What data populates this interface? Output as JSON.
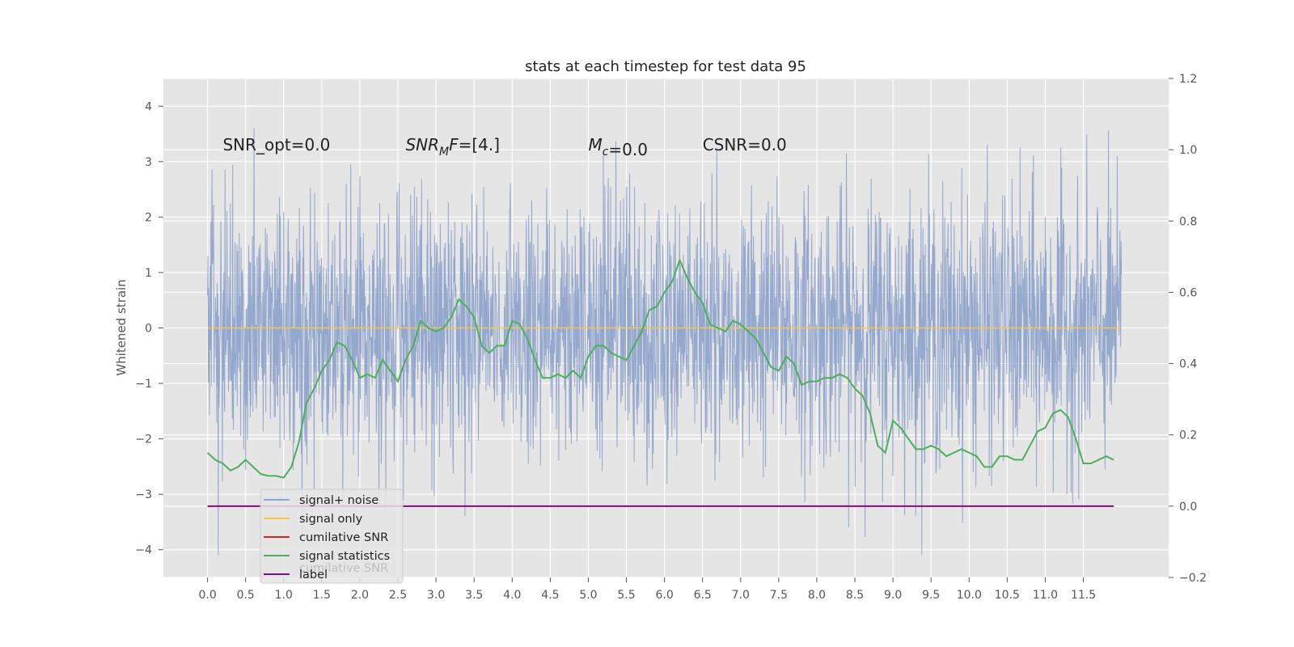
{
  "chart_data": {
    "type": "line",
    "title": "stats at each timestep for test data 95",
    "ylabel": "Whitened strain",
    "xlim": [
      -0.58,
      12.62
    ],
    "ylim_left": [
      -4.5,
      4.5
    ],
    "ylim_right": [
      -0.2,
      1.2
    ],
    "x_ticks": [
      "0.0",
      "0.5",
      "1.0",
      "1.5",
      "2.0",
      "2.5",
      "3.0",
      "3.5",
      "4.0",
      "4.5",
      "5.0",
      "5.5",
      "6.0",
      "6.5",
      "7.0",
      "7.5",
      "8.0",
      "8.5",
      "9.0",
      "9.5",
      "10.0",
      "10.5",
      "11.0",
      "11.5"
    ],
    "y_ticks_left": [
      "4",
      "3",
      "2",
      "1",
      "0",
      "−1",
      "−2",
      "−3",
      "−4"
    ],
    "y_ticks_right": [
      "1.2",
      "1.0",
      "0.8",
      "0.6",
      "0.4",
      "0.2",
      "0.0",
      "−0.2"
    ],
    "grid": true,
    "legend_placement": "lower-left",
    "noise_x_range": [
      0.0,
      12.0
    ],
    "signal_only_value": 0.0,
    "cumulative_snr_value": 0.0,
    "label_value": 0.0,
    "signal_statistics": {
      "x": [
        0.0,
        0.1,
        0.2,
        0.3,
        0.4,
        0.5,
        0.6,
        0.7,
        0.8,
        0.9,
        1.0,
        1.1,
        1.2,
        1.3,
        1.4,
        1.5,
        1.6,
        1.7,
        1.8,
        1.9,
        2.0,
        2.1,
        2.2,
        2.3,
        2.4,
        2.5,
        2.6,
        2.7,
        2.8,
        2.9,
        3.0,
        3.1,
        3.2,
        3.3,
        3.4,
        3.5,
        3.6,
        3.7,
        3.8,
        3.9,
        4.0,
        4.1,
        4.2,
        4.3,
        4.4,
        4.5,
        4.6,
        4.7,
        4.8,
        4.9,
        5.0,
        5.1,
        5.2,
        5.3,
        5.4,
        5.5,
        5.6,
        5.7,
        5.8,
        5.9,
        6.0,
        6.1,
        6.2,
        6.3,
        6.4,
        6.5,
        6.6,
        6.7,
        6.8,
        6.9,
        7.0,
        7.1,
        7.2,
        7.3,
        7.4,
        7.5,
        7.6,
        7.7,
        7.8,
        7.9,
        8.0,
        8.1,
        8.2,
        8.3,
        8.4,
        8.5,
        8.6,
        8.7,
        8.8,
        8.9,
        9.0,
        9.1,
        9.2,
        9.3,
        9.4,
        9.5,
        9.6,
        9.7,
        9.8,
        9.9,
        10.0,
        10.1,
        10.2,
        10.3,
        10.4,
        10.5,
        10.6,
        10.7,
        10.8,
        10.9,
        11.0,
        11.1,
        11.2,
        11.3,
        11.4,
        11.5,
        11.6,
        11.7,
        11.8,
        11.9
      ],
      "y": [
        0.15,
        0.13,
        0.12,
        0.1,
        0.11,
        0.13,
        0.11,
        0.09,
        0.085,
        0.085,
        0.08,
        0.11,
        0.18,
        0.29,
        0.33,
        0.38,
        0.41,
        0.46,
        0.45,
        0.41,
        0.36,
        0.37,
        0.36,
        0.41,
        0.38,
        0.35,
        0.41,
        0.45,
        0.52,
        0.5,
        0.49,
        0.5,
        0.53,
        0.58,
        0.56,
        0.53,
        0.45,
        0.43,
        0.45,
        0.45,
        0.52,
        0.51,
        0.47,
        0.41,
        0.36,
        0.36,
        0.37,
        0.36,
        0.38,
        0.36,
        0.42,
        0.45,
        0.45,
        0.43,
        0.42,
        0.41,
        0.45,
        0.49,
        0.55,
        0.56,
        0.6,
        0.63,
        0.69,
        0.64,
        0.6,
        0.57,
        0.51,
        0.5,
        0.49,
        0.52,
        0.51,
        0.49,
        0.47,
        0.43,
        0.39,
        0.38,
        0.42,
        0.4,
        0.34,
        0.35,
        0.35,
        0.36,
        0.36,
        0.37,
        0.36,
        0.33,
        0.31,
        0.26,
        0.17,
        0.15,
        0.24,
        0.22,
        0.19,
        0.16,
        0.16,
        0.17,
        0.16,
        0.14,
        0.15,
        0.16,
        0.15,
        0.14,
        0.11,
        0.11,
        0.14,
        0.14,
        0.13,
        0.13,
        0.17,
        0.21,
        0.22,
        0.26,
        0.27,
        0.25,
        0.19,
        0.12,
        0.12,
        0.13,
        0.14,
        0.13
      ]
    }
  },
  "annotations": [
    {
      "x": 0.2,
      "y": 3.2,
      "text": "SNR_opt=0.0"
    },
    {
      "x": 2.6,
      "y": 3.2,
      "text": "SNR_MF=[4.]"
    },
    {
      "x": 5.0,
      "y": 3.2,
      "text": "M_c=0.0"
    },
    {
      "x": 6.5,
      "y": 3.2,
      "text": "CSNR=0.0"
    }
  ],
  "legend": [
    {
      "label": "signal+ noise",
      "color": "#8fa3cb"
    },
    {
      "label": "signal only",
      "color": "#f2c45c"
    },
    {
      "label": "cumilative SNR",
      "color": "#d62728"
    },
    {
      "label": "signal statistics",
      "color": "#4caf5c"
    },
    {
      "label": "label",
      "color": "#7b0f7b"
    }
  ],
  "legend_hidden_text": "cumilative SNR",
  "colors": {
    "background": "#e5e5e5",
    "grid": "#ffffff",
    "noise": "#8fa3cb",
    "signal_only": "#f2c45c",
    "statistics": "#4caf5c",
    "label": "#7b0f7b"
  }
}
